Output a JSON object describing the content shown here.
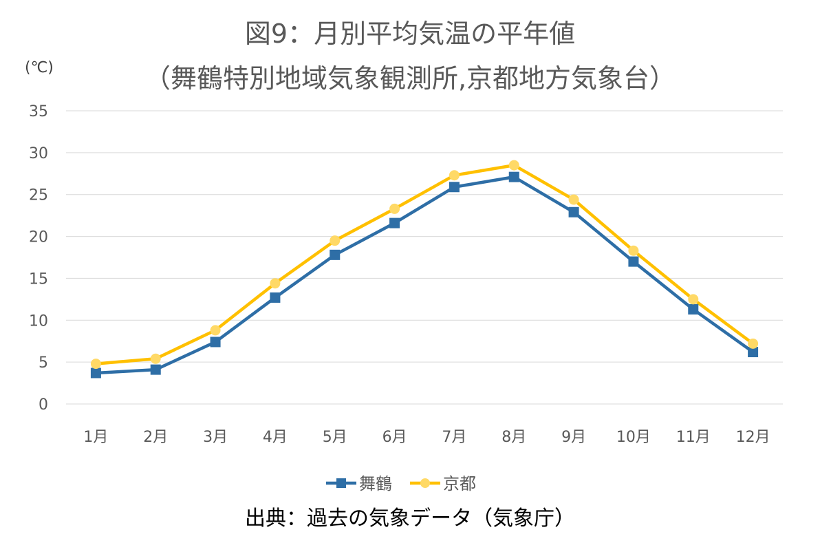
{
  "title_line1": "図9：月別平均気温の平年値",
  "title_line2": "（舞鶴特別地域気象観測所,京都地方気象台）",
  "unit_label": "(℃)",
  "source": "出典：過去の気象データ（気象庁）",
  "chart_data": {
    "type": "line",
    "categories": [
      "1月",
      "2月",
      "3月",
      "4月",
      "5月",
      "6月",
      "7月",
      "8月",
      "9月",
      "10月",
      "11月",
      "12月"
    ],
    "ylim": [
      0,
      35
    ],
    "yticks": [
      0,
      5,
      10,
      15,
      20,
      25,
      30,
      35
    ],
    "grid": true,
    "legend_position": "bottom",
    "series": [
      {
        "name": "舞鶴",
        "color": "#2E6EA6",
        "marker": "square",
        "values": [
          3.7,
          4.1,
          7.4,
          12.7,
          17.8,
          21.6,
          25.9,
          27.1,
          22.9,
          17.0,
          11.3,
          6.2
        ]
      },
      {
        "name": "京都",
        "color": "#FFC000",
        "marker": "circle",
        "values": [
          4.8,
          5.4,
          8.8,
          14.4,
          19.5,
          23.3,
          27.3,
          28.5,
          24.4,
          18.3,
          12.5,
          7.2
        ]
      }
    ]
  }
}
